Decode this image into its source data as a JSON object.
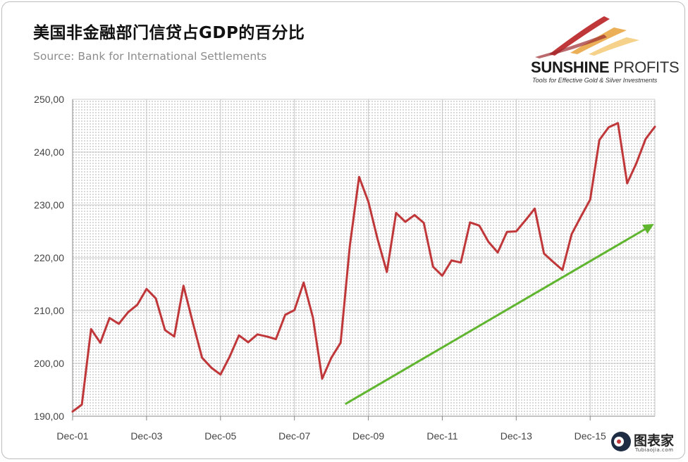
{
  "title": "美国非金融部门信贷占GDP的百分比",
  "subtitle": "Source: Bank for International Settlements",
  "logo": {
    "name_bold": "SUNSHINE",
    "name_thin": " PROFITS",
    "tagline": "Tools for Effective Gold & Silver Investments"
  },
  "watermark": {
    "text": "图表家",
    "sub": "Tubiaojia.com"
  },
  "colors": {
    "line": "#c0373a",
    "trend": "#5fb52e",
    "grid": "#c8c8c8",
    "plot_bg": "#f2f2f2"
  },
  "chart_data": {
    "type": "line",
    "title": "美国非金融部门信贷占GDP的百分比",
    "xlabel": "",
    "ylabel": "",
    "ylim": [
      190,
      250
    ],
    "yticks": [
      "190,00",
      "200,00",
      "210,00",
      "220,00",
      "230,00",
      "240,00",
      "250,00"
    ],
    "ytick_values": [
      190,
      200,
      210,
      220,
      230,
      240,
      250
    ],
    "xticks": [
      "Dec-01",
      "Dec-03",
      "Dec-05",
      "Dec-07",
      "Dec-09",
      "Dec-11",
      "Dec-13",
      "Dec-15"
    ],
    "xtick_quarters": [
      0,
      8,
      16,
      24,
      32,
      40,
      48,
      56
    ],
    "x_first": "Dec-01",
    "x_step": "quarter",
    "series": [
      {
        "values": [
          190.9,
          192.2,
          206.5,
          203.9,
          208.6,
          207.5,
          209.7,
          211.1,
          214.1,
          212.3,
          206.3,
          205.1,
          214.7,
          207.8,
          201.1,
          199.2,
          197.9,
          201.3,
          205.3,
          204.0,
          205.5,
          205.1,
          204.6,
          209.2,
          210.1,
          215.3,
          208.7,
          197.1,
          201.1,
          203.9,
          222.3,
          235.3,
          230.6,
          223.5,
          217.3,
          228.5,
          226.8,
          228.1,
          226.6,
          218.3,
          216.6,
          219.5,
          219.1,
          226.7,
          226.1,
          223.0,
          221.0,
          224.9,
          225.0,
          227.1,
          229.3,
          220.8,
          219.2,
          217.7,
          224.5,
          227.8,
          231.0,
          242.3,
          244.7,
          245.5,
          234.1,
          237.9,
          242.5,
          244.8
        ]
      }
    ],
    "trend_arrow": {
      "x0_quarter": 29.5,
      "y0": 192.3,
      "x1_quarter": 62.7,
      "y1": 226.2
    },
    "grid": true,
    "legend": "none"
  }
}
